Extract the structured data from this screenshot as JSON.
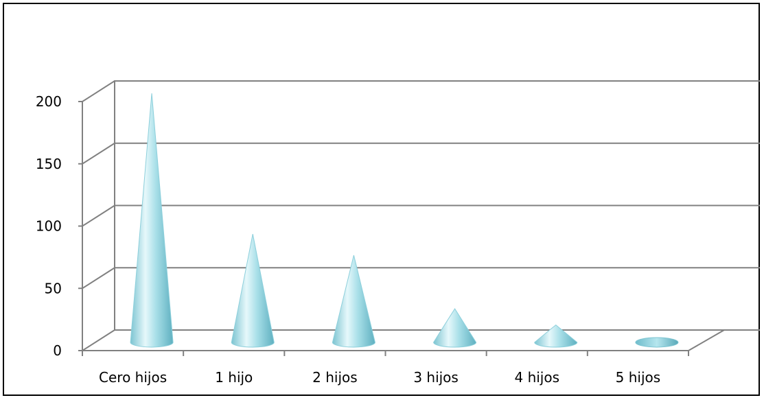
{
  "chart_data": {
    "type": "bar",
    "style": "3d-cone",
    "categories": [
      "Cero hijos",
      "1 hijo",
      "2 hijos",
      "3 hijos",
      "4 hijos",
      "5 hijos"
    ],
    "values": [
      200,
      87,
      70,
      27,
      14,
      2
    ],
    "title": "",
    "xlabel": "",
    "ylabel": "",
    "ylim": [
      0,
      200
    ],
    "yticks": [
      "0",
      "50",
      "100",
      "150",
      "200"
    ],
    "grid": true,
    "legend": "none",
    "colors": {
      "cone_light": "#e6f8fb",
      "cone_mid": "#a8dfe8",
      "cone_dark": "#5fb0c0",
      "grid": "#808080",
      "axis": "#808080"
    }
  }
}
